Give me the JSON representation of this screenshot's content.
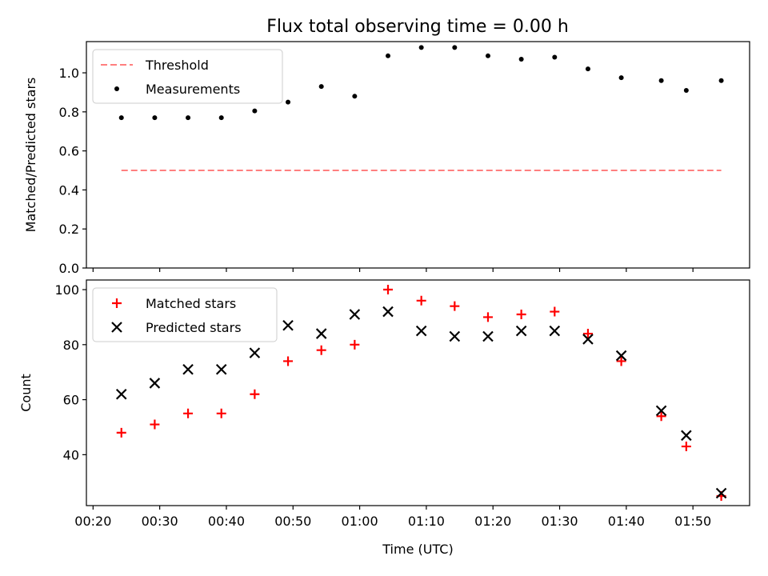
{
  "figure": {
    "title": "Flux total observing time = 0.00 h"
  },
  "colors": {
    "threshold": "#ff7f7f",
    "measurements": "#000000",
    "matched": "#ff0000",
    "predicted": "#000000"
  },
  "chart_data": [
    {
      "type": "scatter",
      "panel": "top",
      "ylabel": "Matched/Predicted stars",
      "xlim": [
        "00:19:00",
        "01:58:30"
      ],
      "ylim": [
        0,
        1.16
      ],
      "yticks": [
        0.0,
        0.2,
        0.4,
        0.6,
        0.8,
        1.0
      ],
      "ytick_labels": [
        "0.0",
        "0.2",
        "0.4",
        "0.6",
        "0.8",
        "1.0"
      ],
      "legend": {
        "position": "top-left",
        "entries": [
          "Threshold",
          "Measurements"
        ]
      },
      "series": [
        {
          "name": "Threshold",
          "style": "dashed-line",
          "x": [
            "00:24:15",
            "01:54:15"
          ],
          "y": [
            0.5,
            0.5
          ]
        },
        {
          "name": "Measurements",
          "style": "dot",
          "x": [
            "00:24:15",
            "00:29:15",
            "00:34:15",
            "00:39:15",
            "00:44:15",
            "00:49:15",
            "00:54:15",
            "00:59:15",
            "01:04:15",
            "01:09:15",
            "01:14:15",
            "01:19:15",
            "01:24:15",
            "01:29:15",
            "01:34:15",
            "01:39:15",
            "01:45:15",
            "01:49:00",
            "01:54:15"
          ],
          "y": [
            0.77,
            0.77,
            0.77,
            0.77,
            0.805,
            0.85,
            0.93,
            0.88,
            1.087,
            1.13,
            1.13,
            1.087,
            1.07,
            1.08,
            1.02,
            0.975,
            0.96,
            0.91,
            0.96
          ]
        }
      ]
    },
    {
      "type": "scatter",
      "panel": "bottom",
      "xlabel": "Time (UTC)",
      "ylabel": "Count",
      "xlim": [
        "00:19:00",
        "01:58:30"
      ],
      "ylim": [
        21.5,
        103.5
      ],
      "yticks": [
        40,
        60,
        80,
        100
      ],
      "ytick_labels": [
        "40",
        "60",
        "80",
        "100"
      ],
      "xticks": [
        "00:20",
        "00:30",
        "00:40",
        "00:50",
        "01:00",
        "01:10",
        "01:20",
        "01:30",
        "01:40",
        "01:50"
      ],
      "legend": {
        "position": "top-left",
        "entries": [
          "Matched stars",
          "Predicted stars"
        ]
      },
      "series": [
        {
          "name": "Matched stars",
          "style": "plus",
          "x": [
            "00:24:15",
            "00:29:15",
            "00:34:15",
            "00:39:15",
            "00:44:15",
            "00:49:15",
            "00:54:15",
            "00:59:15",
            "01:04:15",
            "01:09:15",
            "01:14:15",
            "01:19:15",
            "01:24:15",
            "01:29:15",
            "01:34:15",
            "01:39:15",
            "01:45:15",
            "01:49:00",
            "01:54:15"
          ],
          "y": [
            48,
            51,
            55,
            55,
            62,
            74,
            78,
            80,
            100,
            96,
            94,
            90,
            91,
            92,
            84,
            74,
            54,
            43,
            25
          ]
        },
        {
          "name": "Predicted stars",
          "style": "x",
          "x": [
            "00:24:15",
            "00:29:15",
            "00:34:15",
            "00:39:15",
            "00:44:15",
            "00:49:15",
            "00:54:15",
            "00:59:15",
            "01:04:15",
            "01:09:15",
            "01:14:15",
            "01:19:15",
            "01:24:15",
            "01:29:15",
            "01:34:15",
            "01:39:15",
            "01:45:15",
            "01:49:00",
            "01:54:15"
          ],
          "y": [
            62,
            66,
            71,
            71,
            77,
            87,
            84,
            91,
            92,
            85,
            83,
            83,
            85,
            85,
            82,
            76,
            56,
            47,
            26
          ]
        }
      ]
    }
  ]
}
